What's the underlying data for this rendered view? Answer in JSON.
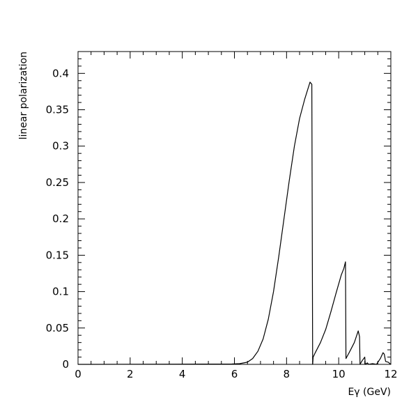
{
  "chart_data": {
    "type": "line",
    "title": "",
    "xlabel": "Eγ (GeV)",
    "ylabel": "linear polarization",
    "xlim": [
      0,
      12
    ],
    "ylim": [
      0,
      0.43
    ],
    "x_ticks": [
      0,
      2,
      4,
      6,
      8,
      10,
      12
    ],
    "x_tick_labels": [
      "0",
      "2",
      "4",
      "6",
      "8",
      "10",
      "12"
    ],
    "y_ticks": [
      0,
      0.05,
      0.1,
      0.15,
      0.2,
      0.25,
      0.3,
      0.35,
      0.4
    ],
    "y_tick_labels": [
      "0",
      "0.05",
      "0.1",
      "0.15",
      "0.2",
      "0.25",
      "0.3",
      "0.35",
      "0.4"
    ],
    "grid": false,
    "legend": "none",
    "series": [
      {
        "color": "#000000",
        "x": [
          0,
          5.9,
          6.2,
          6.5,
          6.7,
          6.9,
          7.1,
          7.3,
          7.5,
          7.7,
          7.9,
          8.1,
          8.3,
          8.5,
          8.7,
          8.9,
          8.97,
          9.0,
          9.02,
          9.1,
          9.3,
          9.5,
          9.7,
          9.9,
          10.1,
          10.2,
          10.26,
          10.28,
          10.4,
          10.6,
          10.75,
          10.8,
          10.82,
          10.9,
          11.0,
          11.02,
          11.1,
          11.15,
          11.3,
          11.45,
          11.6,
          11.7,
          11.75,
          11.8,
          11.9,
          12.0
        ],
        "y": [
          0,
          0.0005,
          0.001,
          0.003,
          0.008,
          0.018,
          0.035,
          0.062,
          0.1,
          0.148,
          0.2,
          0.252,
          0.3,
          0.338,
          0.365,
          0.388,
          0.385,
          0.0,
          0.01,
          0.016,
          0.03,
          0.048,
          0.072,
          0.098,
          0.123,
          0.132,
          0.141,
          0.008,
          0.016,
          0.03,
          0.046,
          0.038,
          0.0,
          0.005,
          0.01,
          0.0,
          0.002,
          0.0,
          0.001,
          0.0,
          0.008,
          0.016,
          0.014,
          0.004,
          0.003,
          0.0
        ]
      }
    ]
  }
}
